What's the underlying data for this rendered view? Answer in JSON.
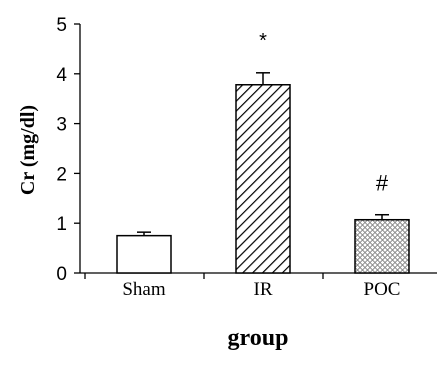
{
  "chart_data": {
    "type": "bar",
    "categories": [
      "Sham",
      "IR",
      "POC"
    ],
    "values": [
      0.75,
      3.78,
      1.07
    ],
    "errors": [
      0.07,
      0.24,
      0.1
    ],
    "fills": [
      "plain",
      "diagonal-hatch",
      "crosshatch"
    ],
    "annotations": [
      "",
      "*",
      "#"
    ],
    "ylabel": "Cr (mg/dl)",
    "xlabel": "group",
    "ylim": [
      0,
      5
    ],
    "yticks": [
      "0",
      "1",
      "2",
      "3",
      "4",
      "5"
    ],
    "grid": false,
    "legend": "none"
  }
}
